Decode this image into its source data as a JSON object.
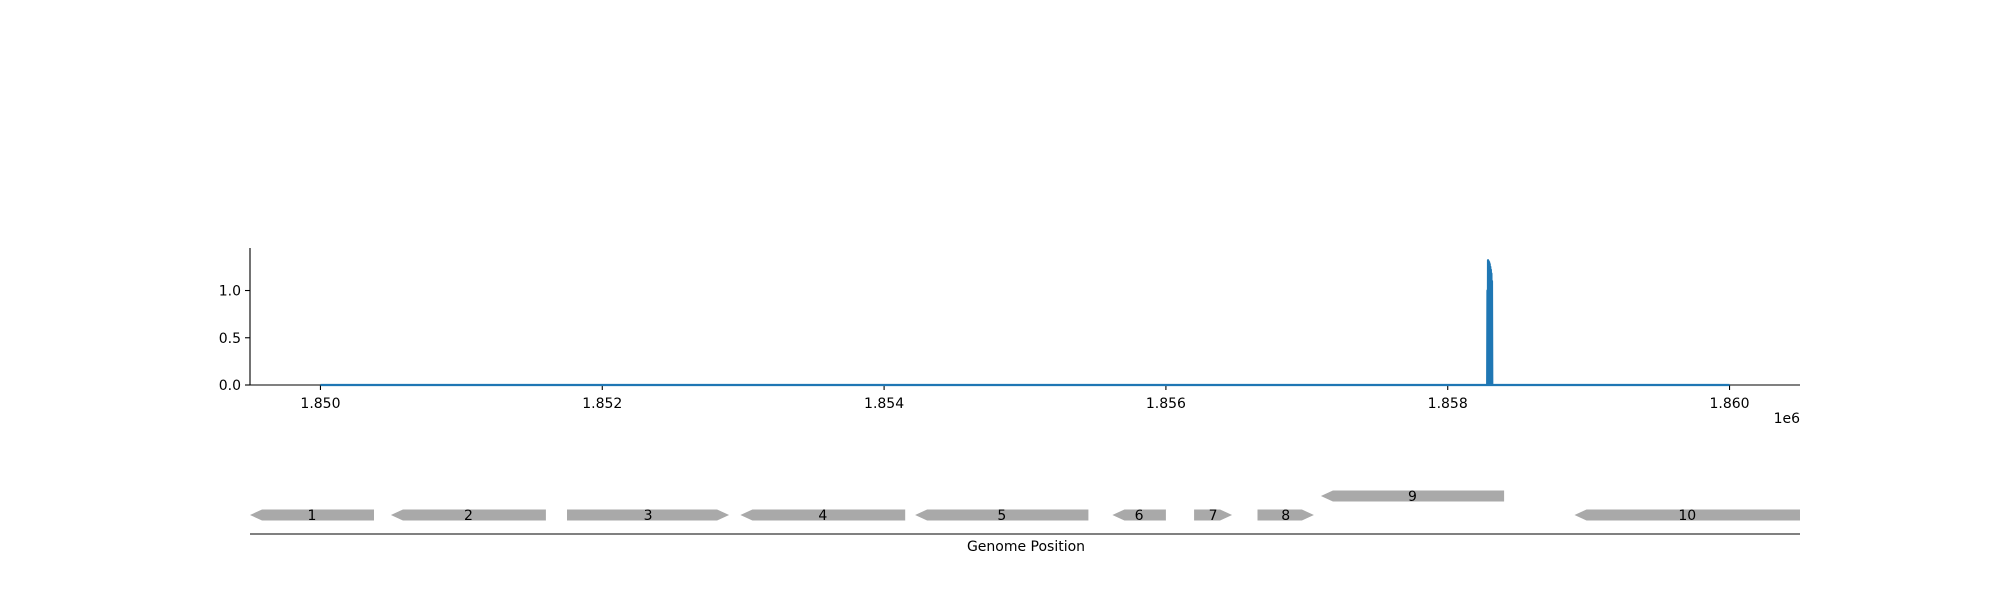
{
  "chart_data": [
    {
      "type": "line",
      "title": "",
      "xlabel": "",
      "ylabel": "",
      "x_offset_text": "1e6",
      "xlim": [
        1849500,
        1860500
      ],
      "ylim": [
        0,
        1.45
      ],
      "x_ticks": [
        1850000,
        1852000,
        1854000,
        1856000,
        1858000,
        1860000
      ],
      "x_tick_labels": [
        "1.850",
        "1.852",
        "1.854",
        "1.856",
        "1.858",
        "1.860"
      ],
      "y_ticks": [
        0.0,
        0.5,
        1.0
      ],
      "y_tick_labels": [
        "0.0",
        "0.5",
        "1.0"
      ],
      "grid": false,
      "color": "#1f77b4",
      "series": [
        {
          "x": [
            1850000,
            1858280,
            1858282,
            1858284,
            1858286,
            1858288,
            1858290,
            1858292,
            1858294,
            1858296,
            1858298,
            1858300,
            1858302,
            1858304,
            1858306,
            1858308,
            1858310,
            1858312,
            1858314,
            1858316,
            1860000
          ],
          "y": [
            0,
            0,
            1.0,
            0,
            1.32,
            0,
            1.31,
            0,
            1.3,
            0,
            1.28,
            0,
            1.25,
            0,
            1.22,
            0,
            1.18,
            0,
            1.1,
            0,
            0
          ]
        }
      ]
    },
    {
      "type": "gene-track",
      "xlabel": "Genome Position",
      "xlim": [
        1849500,
        1860500
      ],
      "genes": [
        {
          "label": "1",
          "start": 1849500,
          "end": 1850380,
          "strand": "-",
          "row": 0
        },
        {
          "label": "2",
          "start": 1850500,
          "end": 1851600,
          "strand": "-",
          "row": 0
        },
        {
          "label": "3",
          "start": 1851750,
          "end": 1852900,
          "strand": "+",
          "row": 0
        },
        {
          "label": "4",
          "start": 1852980,
          "end": 1854150,
          "strand": "-",
          "row": 0
        },
        {
          "label": "5",
          "start": 1854220,
          "end": 1855450,
          "strand": "-",
          "row": 0
        },
        {
          "label": "6",
          "start": 1855620,
          "end": 1856000,
          "strand": "-",
          "row": 0
        },
        {
          "label": "7",
          "start": 1856200,
          "end": 1856470,
          "strand": "+",
          "row": 0
        },
        {
          "label": "8",
          "start": 1856650,
          "end": 1857050,
          "strand": "+",
          "row": 0
        },
        {
          "label": "9",
          "start": 1857100,
          "end": 1858400,
          "strand": "-",
          "row": 1
        },
        {
          "label": "10",
          "start": 1858900,
          "end": 1860500,
          "strand": "-",
          "row": 0
        }
      ]
    }
  ]
}
